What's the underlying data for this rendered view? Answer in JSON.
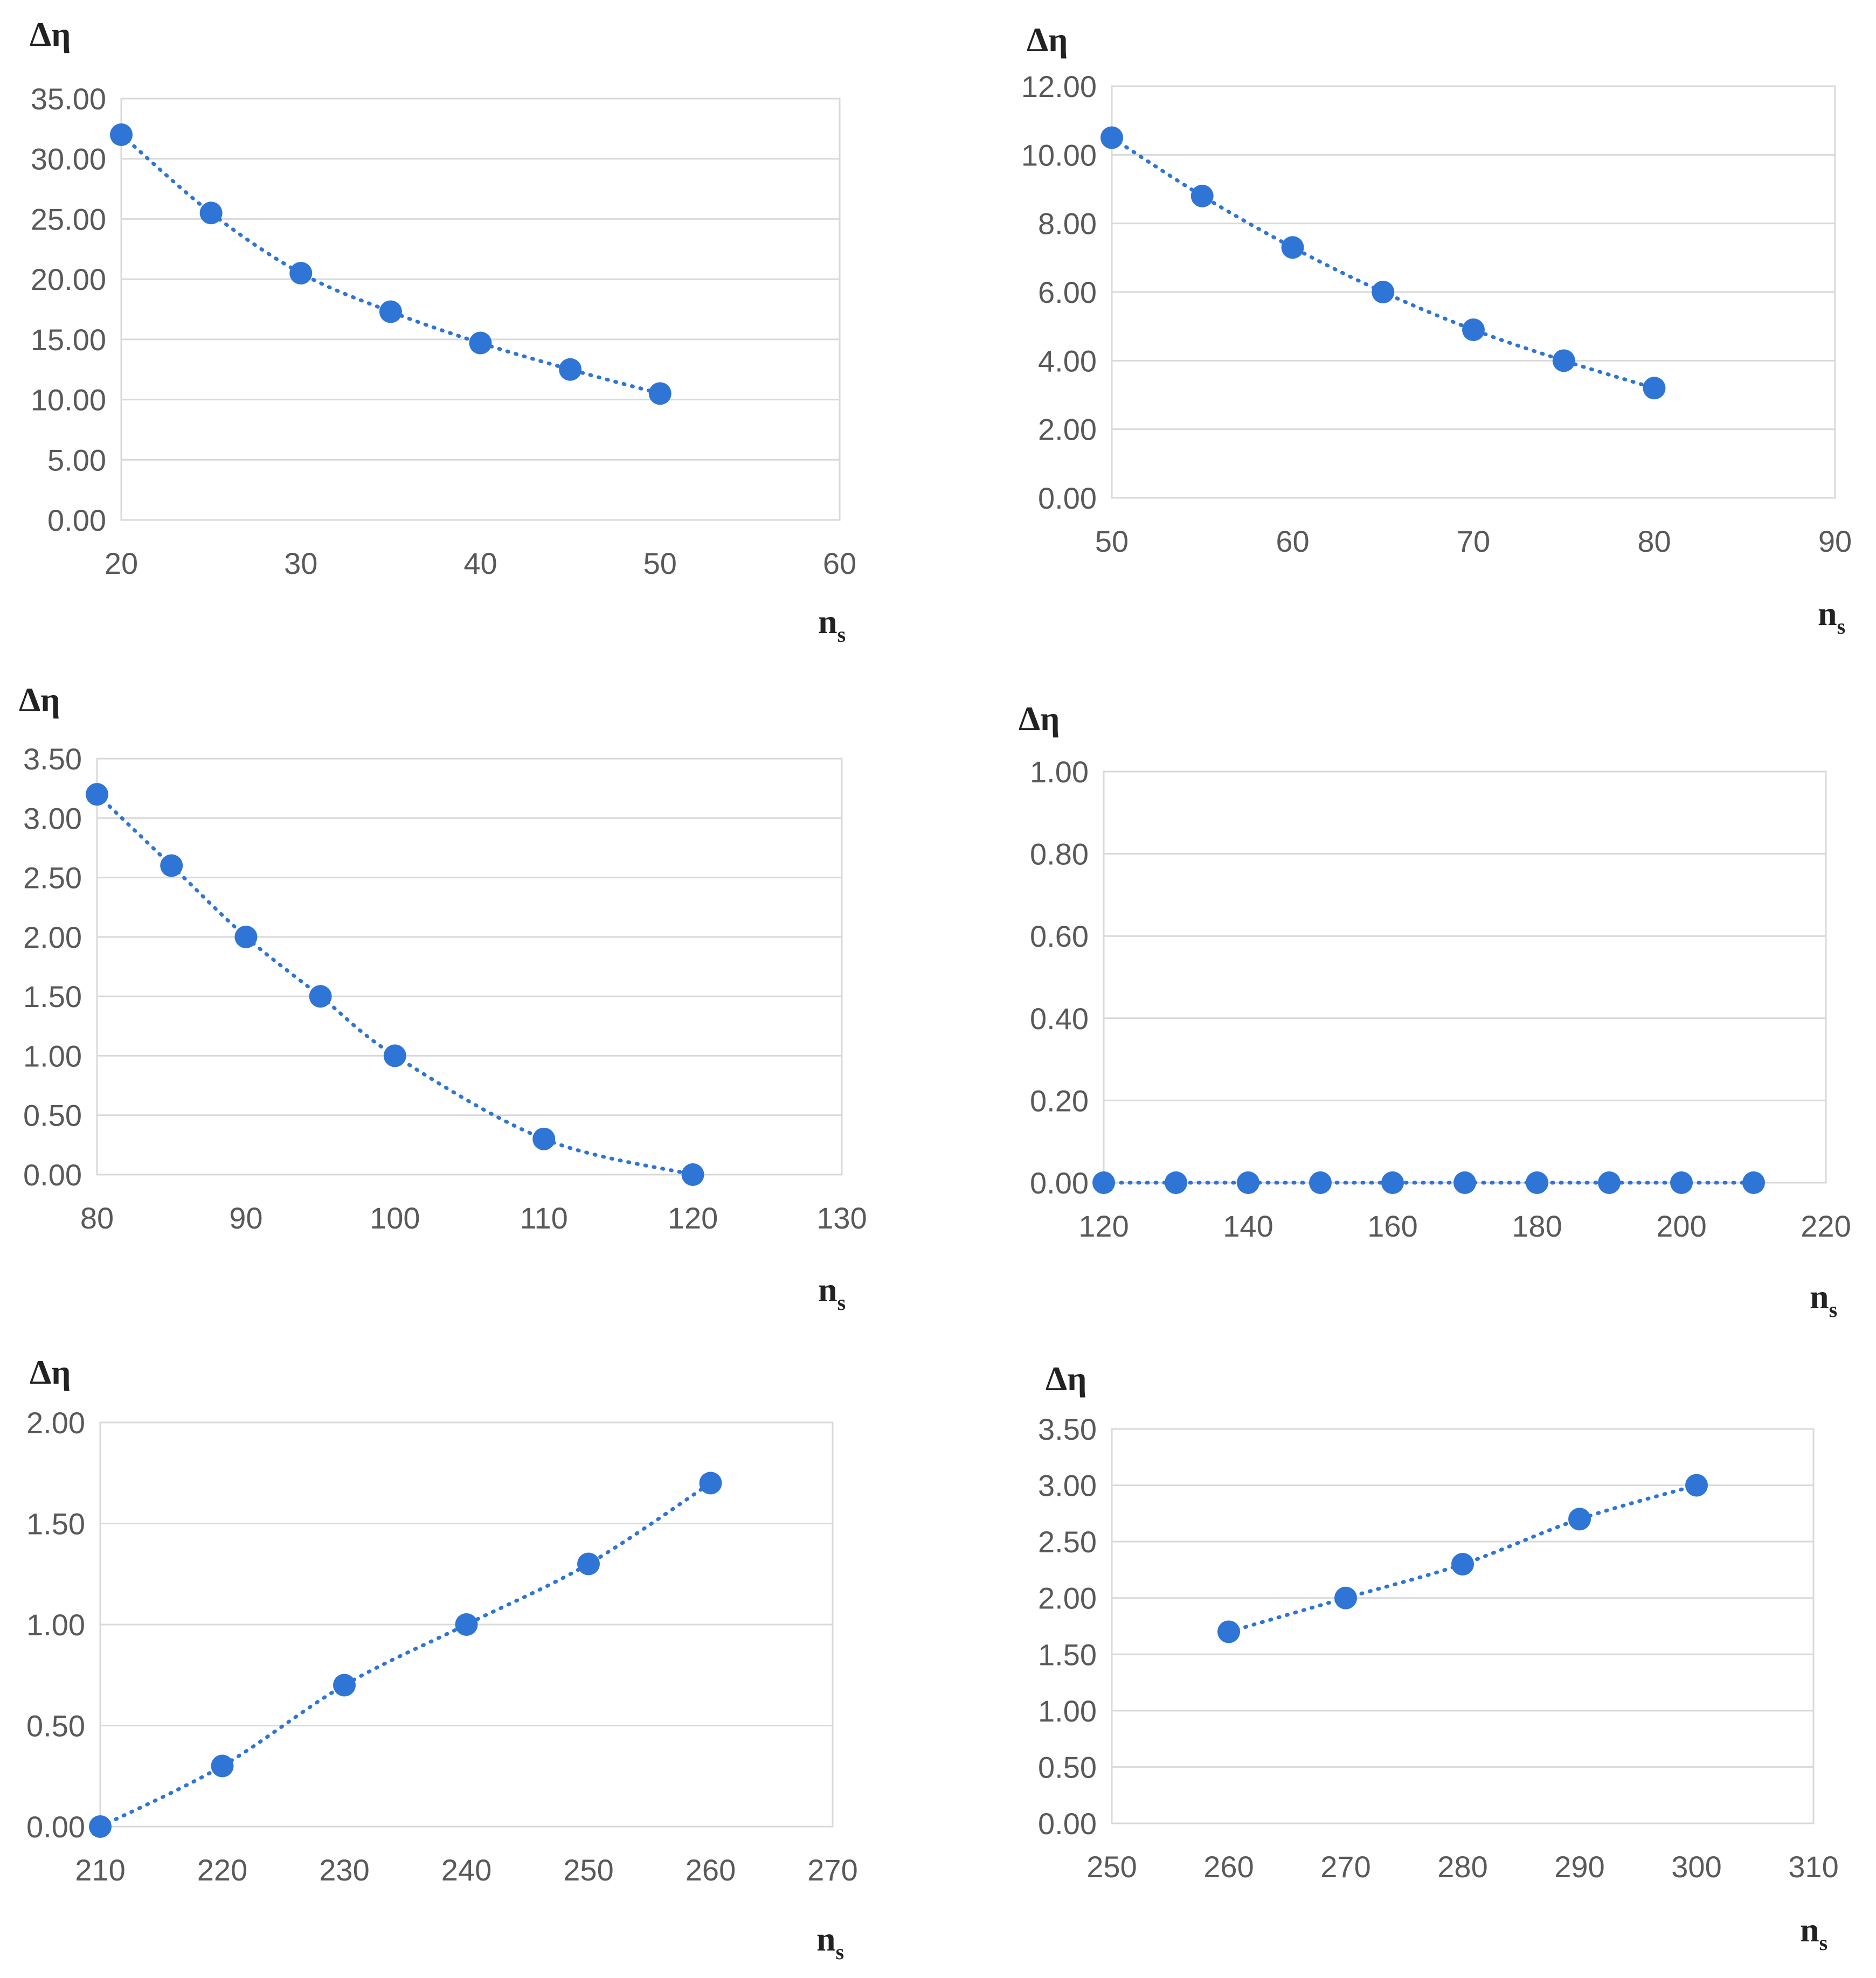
{
  "colors": {
    "series": "#2E75D6",
    "grid": "#d9d9d9",
    "tick_text": "#595959"
  },
  "chart_data": [
    {
      "type": "scatter",
      "ylabel": "Δη",
      "xlabel": "n",
      "xlabel_sub": "s",
      "xlim": [
        20,
        60
      ],
      "xticks": [
        20,
        30,
        40,
        50,
        60
      ],
      "ylim": [
        0,
        35
      ],
      "yticks": [
        0,
        5,
        10,
        15,
        20,
        25,
        30,
        35
      ],
      "ydecimals": 2,
      "x": [
        20,
        25,
        30,
        35,
        40,
        45,
        50
      ],
      "y": [
        32.0,
        25.5,
        20.5,
        17.3,
        14.7,
        12.5,
        10.5
      ],
      "trendline": "dotted"
    },
    {
      "type": "scatter",
      "ylabel": "Δη",
      "xlabel": "n",
      "xlabel_sub": "s",
      "xlim": [
        50,
        90
      ],
      "xticks": [
        50,
        60,
        70,
        80,
        90
      ],
      "ylim": [
        0,
        12
      ],
      "yticks": [
        0,
        2,
        4,
        6,
        8,
        10,
        12
      ],
      "ydecimals": 2,
      "x": [
        50,
        55,
        60,
        65,
        70,
        75,
        80
      ],
      "y": [
        10.5,
        8.8,
        7.3,
        6.0,
        4.9,
        4.0,
        3.2
      ],
      "trendline": "dotted"
    },
    {
      "type": "scatter",
      "ylabel": "Δη",
      "xlabel": "n",
      "xlabel_sub": "s",
      "xlim": [
        80,
        130
      ],
      "xticks": [
        80,
        90,
        100,
        110,
        120,
        130
      ],
      "ylim": [
        0,
        3.5
      ],
      "yticks": [
        0,
        0.5,
        1,
        1.5,
        2,
        2.5,
        3,
        3.5
      ],
      "ydecimals": 2,
      "x": [
        80,
        85,
        90,
        95,
        100,
        110,
        120
      ],
      "y": [
        3.2,
        2.6,
        2.0,
        1.5,
        1.0,
        0.3,
        0.0
      ],
      "trendline": "dotted"
    },
    {
      "type": "scatter",
      "ylabel": "Δη",
      "xlabel": "n",
      "xlabel_sub": "s",
      "xlim": [
        120,
        220
      ],
      "xticks": [
        120,
        140,
        160,
        180,
        200,
        220
      ],
      "ylim": [
        0,
        1
      ],
      "yticks": [
        0,
        0.2,
        0.4,
        0.6,
        0.8,
        1
      ],
      "ydecimals": 2,
      "x": [
        120,
        130,
        140,
        150,
        160,
        170,
        180,
        190,
        200,
        210
      ],
      "y": [
        0,
        0,
        0,
        0,
        0,
        0,
        0,
        0,
        0,
        0
      ],
      "trendline": "dotted"
    },
    {
      "type": "scatter",
      "ylabel": "Δη",
      "xlabel": "n",
      "xlabel_sub": "s",
      "xlim": [
        210,
        270
      ],
      "xticks": [
        210,
        220,
        230,
        240,
        250,
        260,
        270
      ],
      "ylim": [
        0,
        2
      ],
      "yticks": [
        0,
        0.5,
        1,
        1.5,
        2
      ],
      "ydecimals": 2,
      "x": [
        210,
        220,
        230,
        240,
        250,
        260
      ],
      "y": [
        0.0,
        0.3,
        0.7,
        1.0,
        1.3,
        1.7
      ],
      "trendline": "dotted"
    },
    {
      "type": "scatter",
      "ylabel": "Δη",
      "xlabel": "n",
      "xlabel_sub": "s",
      "xlim": [
        250,
        310
      ],
      "xticks": [
        250,
        260,
        270,
        280,
        290,
        300,
        310
      ],
      "ylim": [
        0,
        3.5
      ],
      "yticks": [
        0,
        0.5,
        1,
        1.5,
        2,
        2.5,
        3,
        3.5
      ],
      "ydecimals": 2,
      "x": [
        260,
        270,
        280,
        290,
        300
      ],
      "y": [
        1.7,
        2.0,
        2.3,
        2.7,
        3.0
      ],
      "trendline": "dotted"
    }
  ]
}
